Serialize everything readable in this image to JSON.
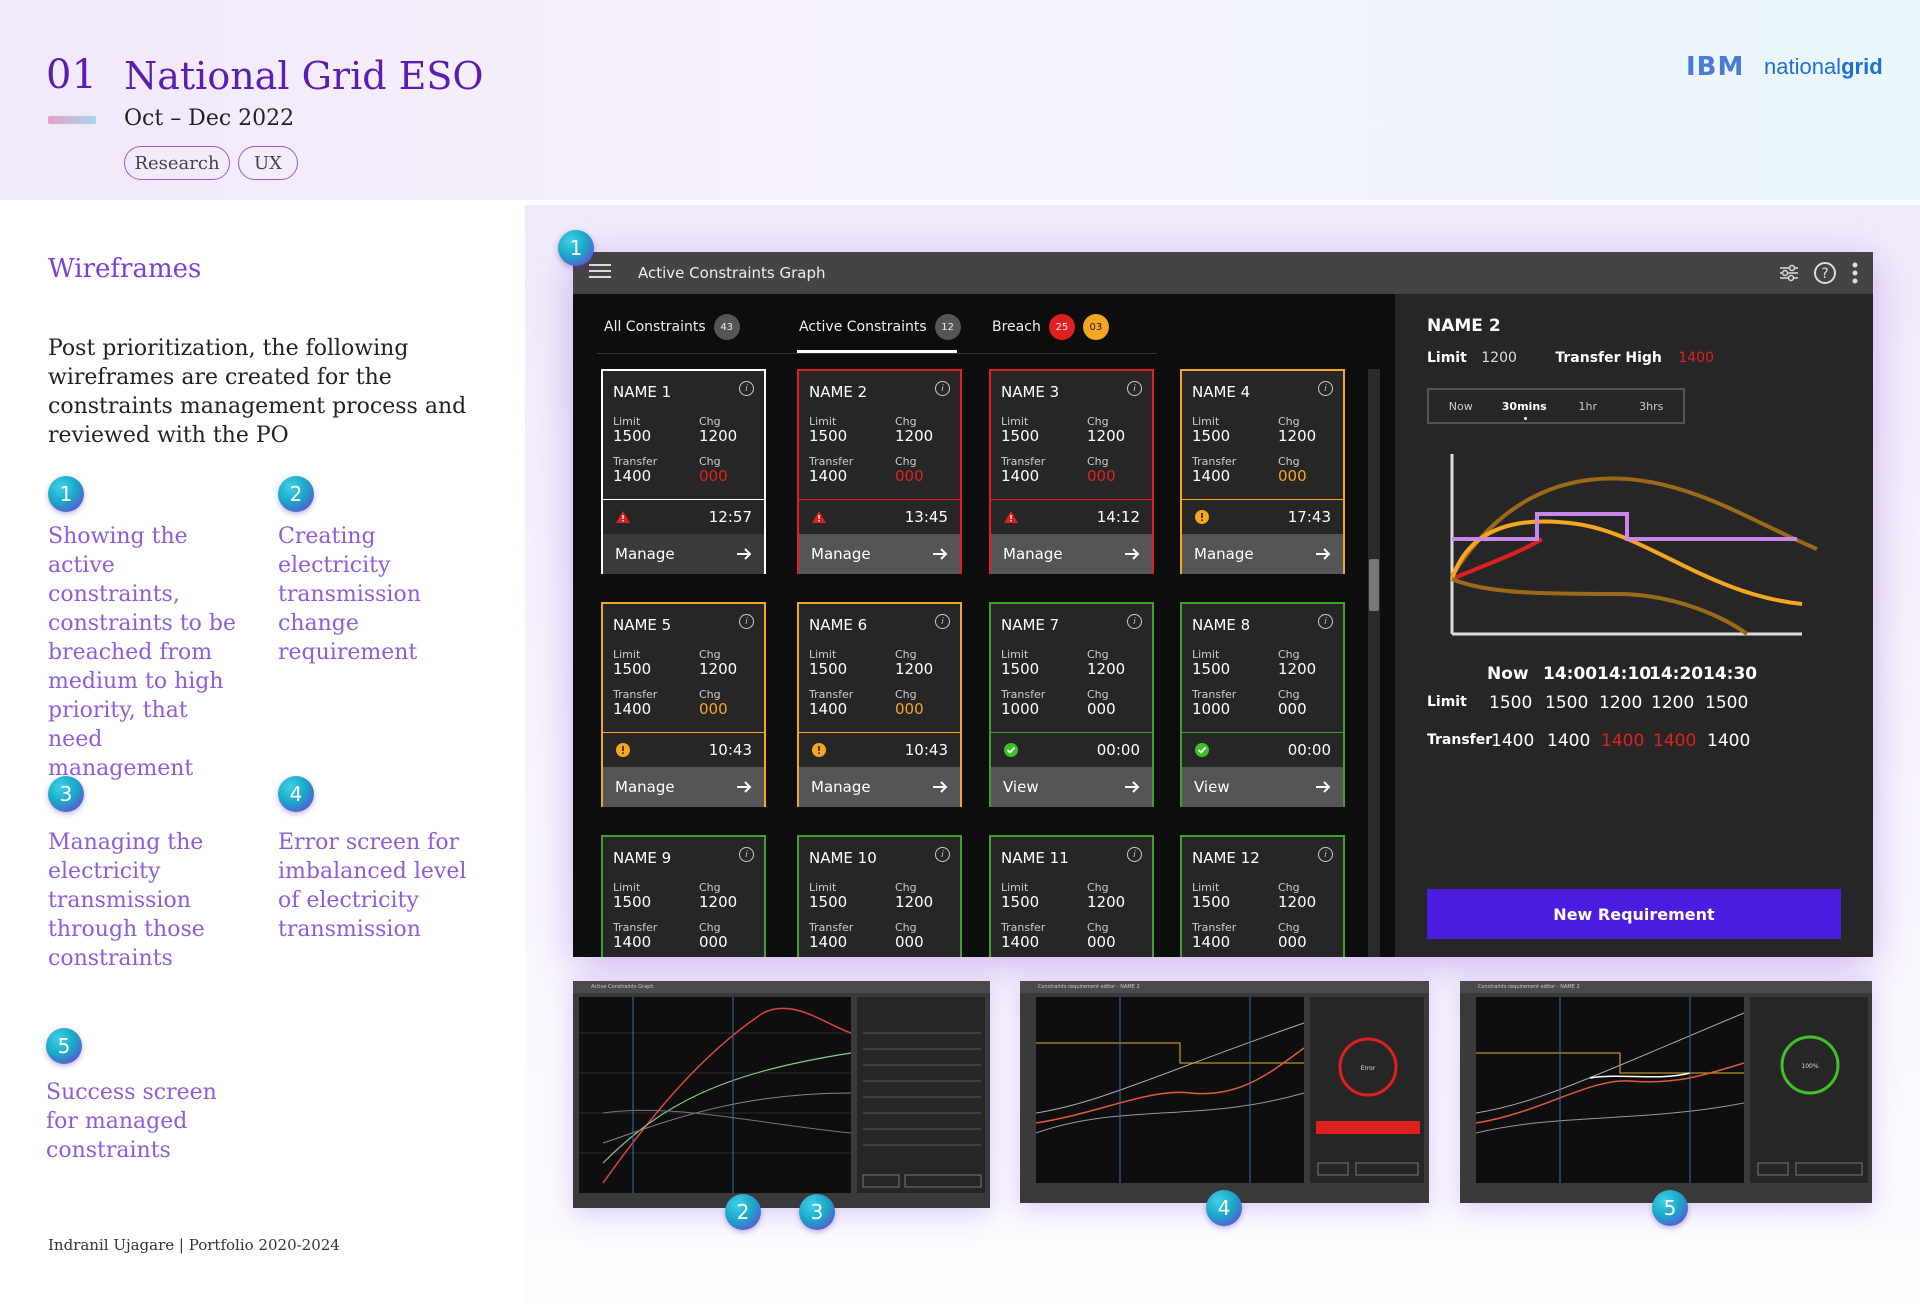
{
  "header": {
    "number": "01",
    "title": "National Grid ESO",
    "date": "Oct – Dec 2022",
    "tags": [
      "Research",
      "UX"
    ],
    "logos": {
      "ibm": "IBM",
      "ng_light": "national",
      "ng_bold": "grid"
    }
  },
  "section": {
    "heading": "Wireframes",
    "intro": "Post prioritization, the following wireframes are created for the constraints management process and reviewed with the PO"
  },
  "steps": [
    {
      "n": "1",
      "text": "Showing the active constraints, constraints to be breached from medium to high priority, that need management"
    },
    {
      "n": "2",
      "text": "Creating electricity transmission change requirement"
    },
    {
      "n": "3",
      "text": "Managing the electricity transmission through those constraints"
    },
    {
      "n": "4",
      "text": "Error screen for imbalanced level of electricity transmission"
    },
    {
      "n": "5",
      "text": "Success screen for managed constraints"
    }
  ],
  "footer": "Indranil Ujagare | Portfolio 2020-2024",
  "app": {
    "title": "Active Constraints Graph",
    "tabs": [
      {
        "label": "All Constraints",
        "count": "43"
      },
      {
        "label": "Active Constraints",
        "count": "12"
      },
      {
        "label": "Breach",
        "count_red": "25",
        "count_orange": "03"
      }
    ],
    "labels": {
      "limit": "Limit",
      "chg": "Chg",
      "transfer": "Transfer"
    },
    "cards": [
      {
        "name": "NAME 1",
        "limit": "1500",
        "chg1": "1200",
        "transfer": "1400",
        "chg2": "000",
        "time": "12:57",
        "action": "Manage",
        "status": "white"
      },
      {
        "name": "NAME 2",
        "limit": "1500",
        "chg1": "1200",
        "transfer": "1400",
        "chg2": "000",
        "time": "13:45",
        "action": "Manage",
        "status": "red"
      },
      {
        "name": "NAME 3",
        "limit": "1500",
        "chg1": "1200",
        "transfer": "1400",
        "chg2": "000",
        "time": "14:12",
        "action": "Manage",
        "status": "red"
      },
      {
        "name": "NAME 4",
        "limit": "1500",
        "chg1": "1200",
        "transfer": "1400",
        "chg2": "000",
        "time": "17:43",
        "action": "Manage",
        "status": "orange"
      },
      {
        "name": "NAME 5",
        "limit": "1500",
        "chg1": "1200",
        "transfer": "1400",
        "chg2": "000",
        "time": "10:43",
        "action": "Manage",
        "status": "orange"
      },
      {
        "name": "NAME 6",
        "limit": "1500",
        "chg1": "1200",
        "transfer": "1400",
        "chg2": "000",
        "time": "10:43",
        "action": "Manage",
        "status": "orange"
      },
      {
        "name": "NAME 7",
        "limit": "1500",
        "chg1": "1200",
        "transfer": "1000",
        "chg2": "000",
        "time": "00:00",
        "action": "View",
        "status": "green"
      },
      {
        "name": "NAME 8",
        "limit": "1500",
        "chg1": "1200",
        "transfer": "1000",
        "chg2": "000",
        "time": "00:00",
        "action": "View",
        "status": "green"
      },
      {
        "name": "NAME 9",
        "limit": "1500",
        "chg1": "1200",
        "transfer": "1400",
        "chg2": "000",
        "time": "",
        "action": "",
        "status": "green"
      },
      {
        "name": "NAME 10",
        "limit": "1500",
        "chg1": "1200",
        "transfer": "1400",
        "chg2": "000",
        "time": "",
        "action": "",
        "status": "green"
      },
      {
        "name": "NAME 11",
        "limit": "1500",
        "chg1": "1200",
        "transfer": "1400",
        "chg2": "000",
        "time": "",
        "action": "",
        "status": "green"
      },
      {
        "name": "NAME 12",
        "limit": "1500",
        "chg1": "1200",
        "transfer": "1400",
        "chg2": "000",
        "time": "",
        "action": "",
        "status": "green"
      }
    ],
    "detail": {
      "name": "NAME 2",
      "limit_label": "Limit",
      "limit": "1200",
      "transfer_high_label": "Transfer High",
      "transfer_high": "1400",
      "ranges": [
        "Now",
        "30mins",
        "1hr",
        "3hrs"
      ],
      "selected_range": "30mins",
      "table": {
        "headers": [
          "Now",
          "14:00",
          "14:10",
          "14:20",
          "14:30"
        ],
        "limit_label": "Limit",
        "limit": [
          "1500",
          "1500",
          "1200",
          "1200",
          "1500"
        ],
        "transfer_label": "Transfer",
        "transfer": [
          "1400",
          "1400",
          "1400",
          "1400",
          "1400"
        ],
        "transfer_alert": [
          false,
          false,
          true,
          true,
          false
        ]
      },
      "button": "New Requirement"
    }
  },
  "thumbnails": [
    {
      "title": "Active Constraints Graph"
    },
    {
      "title": "Constraints requirement editor - NAME 2",
      "status": "Error"
    },
    {
      "title": "Constraints requirement editor - NAME 2",
      "status": "100%"
    }
  ],
  "colors": {
    "accent": "#5a1fb0",
    "red": "#e02020",
    "orange": "#f5a623",
    "green": "#3fa02a",
    "button": "#4a1de0"
  }
}
